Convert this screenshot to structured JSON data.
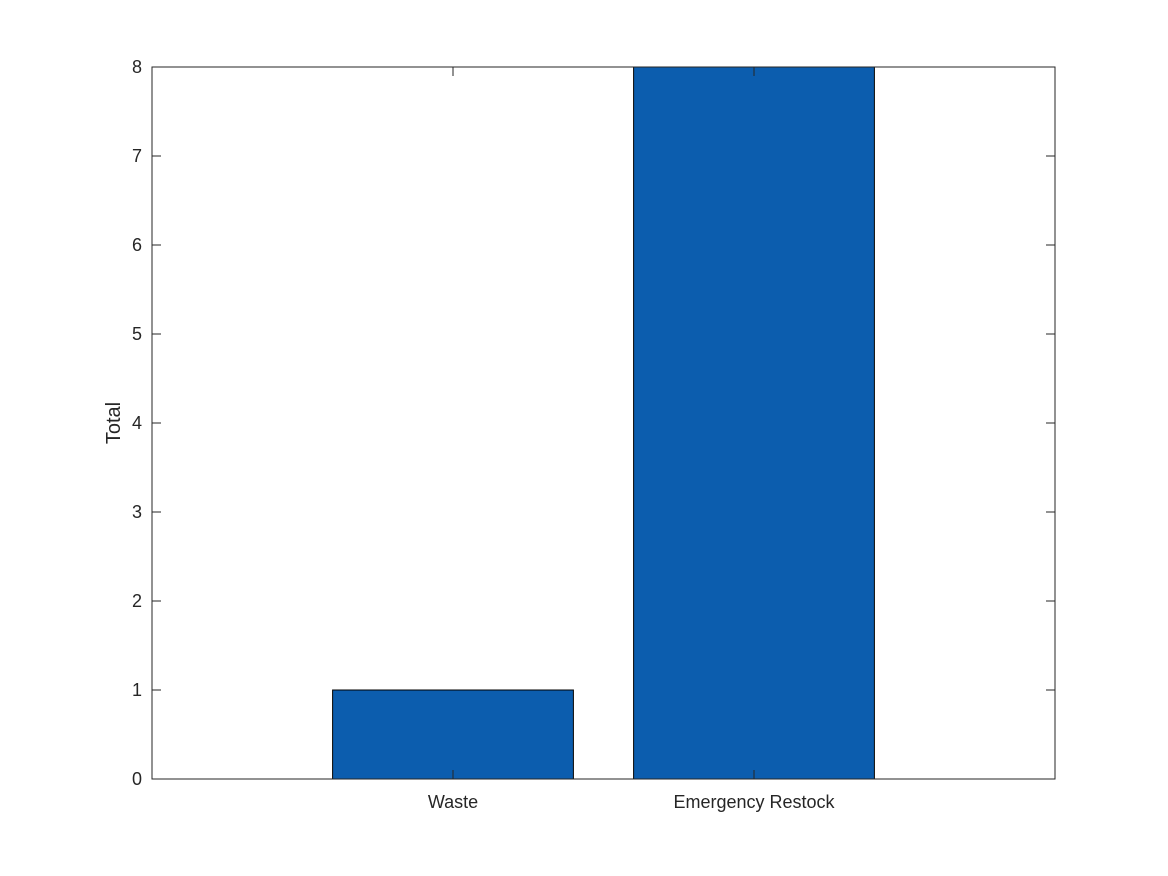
{
  "chart_data": {
    "type": "bar",
    "title": "",
    "xlabel": "",
    "ylabel": "Total",
    "categories": [
      "Waste",
      "Emergency Restock"
    ],
    "values": [
      1,
      8
    ],
    "ylim": [
      0,
      8
    ],
    "yticks": [
      0,
      1,
      2,
      3,
      4,
      5,
      6,
      7,
      8
    ],
    "grid": false,
    "legend": "none",
    "bar_color": "#0c5dae",
    "axis_color": "#262626"
  }
}
